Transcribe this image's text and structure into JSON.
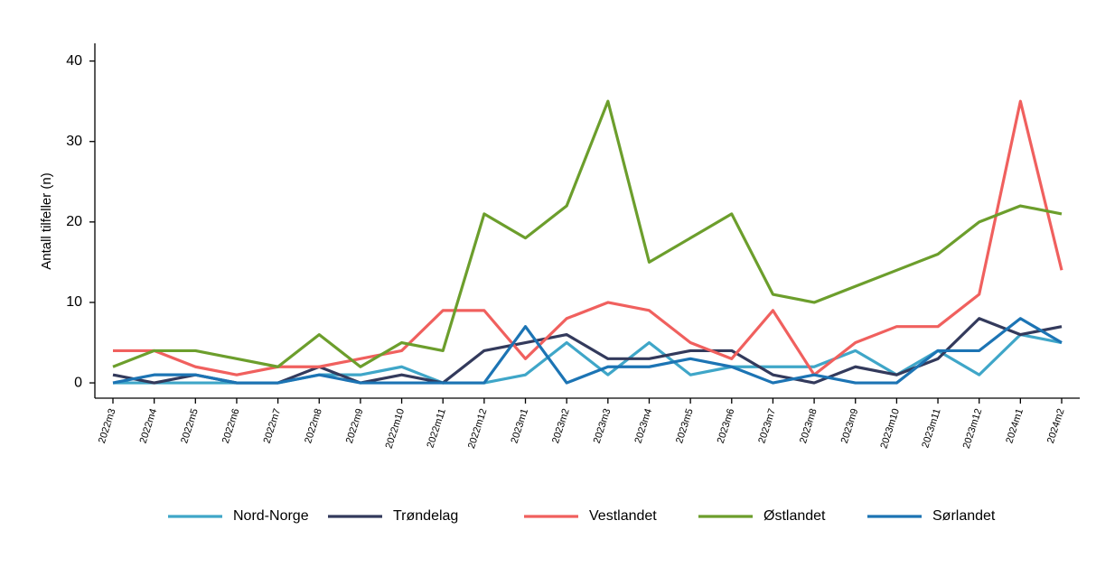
{
  "chart_data": {
    "type": "line",
    "y_label": "Antall tilfeller (n)",
    "categories": [
      "2022m3",
      "2022m4",
      "2022m5",
      "2022m6",
      "2022m7",
      "2022m8",
      "2022m9",
      "2022m10",
      "2022m11",
      "2022m12",
      "2023m1",
      "2023m2",
      "2023m3",
      "2023m4",
      "2023m5",
      "2023m6",
      "2023m7",
      "2023m8",
      "2023m9",
      "2023m10",
      "2023m11",
      "2023m12",
      "2024m1",
      "2024m2"
    ],
    "series": [
      {
        "name": "Nord-Norge",
        "color": "#3fa6c8",
        "values": [
          0,
          0,
          0,
          0,
          0,
          1,
          1,
          2,
          0,
          0,
          1,
          5,
          1,
          5,
          1,
          2,
          2,
          2,
          4,
          1,
          4,
          1,
          6,
          5
        ]
      },
      {
        "name": "Trøndelag",
        "color": "#333a5c",
        "values": [
          1,
          0,
          1,
          0,
          0,
          2,
          0,
          1,
          0,
          4,
          5,
          6,
          3,
          3,
          4,
          4,
          1,
          0,
          2,
          1,
          3,
          8,
          6,
          7
        ]
      },
      {
        "name": "Vestlandet",
        "color": "#f0605e",
        "values": [
          4,
          4,
          2,
          1,
          2,
          2,
          3,
          4,
          9,
          9,
          3,
          8,
          10,
          9,
          5,
          3,
          9,
          1,
          5,
          7,
          7,
          11,
          35,
          14
        ]
      },
      {
        "name": "Østlandet",
        "color": "#6c9e2c",
        "values": [
          2,
          4,
          4,
          3,
          2,
          6,
          2,
          5,
          4,
          21,
          18,
          22,
          35,
          15,
          18,
          21,
          11,
          10,
          12,
          14,
          16,
          20,
          22,
          21
        ]
      },
      {
        "name": "Sørlandet",
        "color": "#1c74b4",
        "values": [
          0,
          1,
          1,
          0,
          0,
          1,
          0,
          0,
          0,
          0,
          7,
          0,
          2,
          2,
          3,
          2,
          0,
          1,
          0,
          0,
          4,
          4,
          8,
          5
        ]
      }
    ],
    "ylim": [
      -1.9,
      42.2
    ],
    "yticks": [
      0,
      10,
      20,
      30,
      40
    ]
  }
}
